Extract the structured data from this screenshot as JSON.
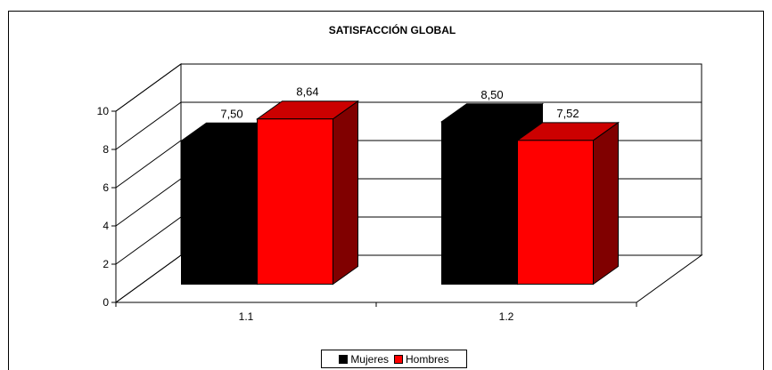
{
  "chart_data": {
    "type": "bar",
    "title": "SATISFACCIÓN GLOBAL",
    "categories": [
      "1.1",
      "1.2"
    ],
    "series": [
      {
        "name": "Mujeres",
        "values": [
          7.5,
          8.5
        ],
        "labels": [
          "7,50",
          "8,50"
        ],
        "color": "#000000"
      },
      {
        "name": "Hombres",
        "values": [
          8.64,
          7.52
        ],
        "labels": [
          "8,64",
          "7,52"
        ],
        "color": "#ff0000"
      }
    ],
    "ylim": [
      0,
      10
    ],
    "yticks": [
      "0",
      "2",
      "4",
      "6",
      "8",
      "10"
    ],
    "grid": true,
    "three_d": true,
    "legend_position": "bottom"
  }
}
